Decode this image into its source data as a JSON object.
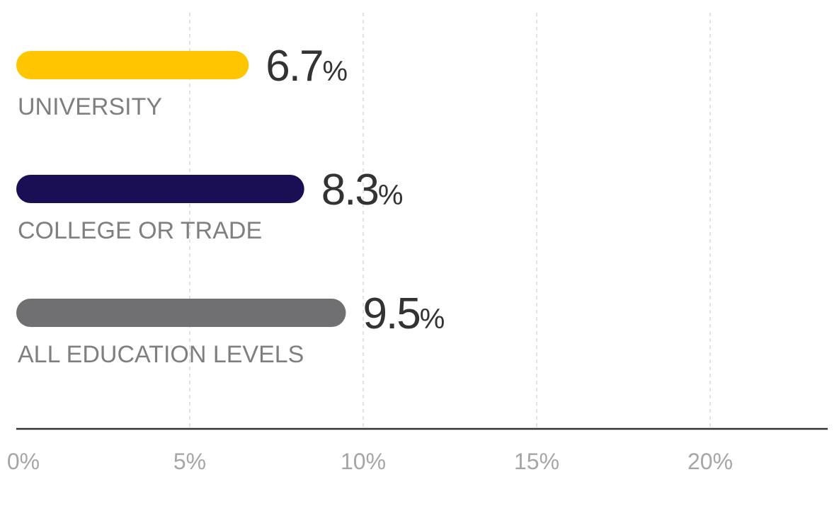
{
  "chart_data": {
    "type": "bar",
    "orientation": "horizontal",
    "categories": [
      "UNIVERSITY",
      "COLLEGE OR TRADE",
      "ALL EDUCATION LEVELS"
    ],
    "values": [
      6.7,
      8.3,
      9.5
    ],
    "value_labels": [
      "6.7",
      "8.3",
      "9.5"
    ],
    "value_suffix": "%",
    "colors": [
      "#ffc600",
      "#1a0e55",
      "#707073"
    ],
    "xlim": [
      0,
      23.5
    ],
    "x_ticks": [
      0,
      5,
      10,
      15,
      20
    ],
    "x_tick_labels": [
      "0%",
      "5%",
      "10%",
      "15%",
      "20%"
    ],
    "grid": true,
    "title": "",
    "xlabel": "",
    "ylabel": ""
  }
}
